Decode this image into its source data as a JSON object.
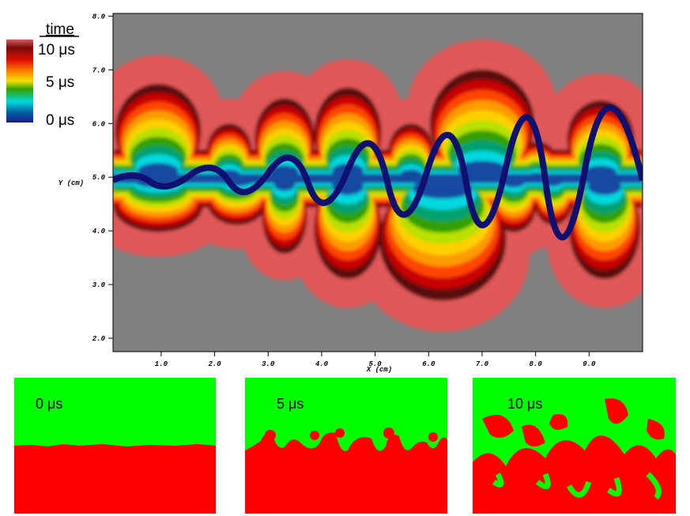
{
  "chart_data": {
    "type": "contour",
    "xlabel": "X (cm)",
    "ylabel": "Y (cm)",
    "xlim": [
      0.1,
      10
    ],
    "ylim": [
      1.75,
      8.05
    ],
    "xticks": [
      {
        "value": 1,
        "label": "1.0"
      },
      {
        "value": 2,
        "label": "2.0"
      },
      {
        "value": 3,
        "label": "3.0"
      },
      {
        "value": 4,
        "label": "4.0"
      },
      {
        "value": 5,
        "label": "5.0"
      },
      {
        "value": 6,
        "label": "6.0"
      },
      {
        "value": 7,
        "label": "7.0"
      },
      {
        "value": 8,
        "label": "8.0"
      },
      {
        "value": 9,
        "label": "9.0"
      }
    ],
    "yticks": [
      {
        "value": 2,
        "label": "2.0"
      },
      {
        "value": 3,
        "label": "3.0"
      },
      {
        "value": 4,
        "label": "4.0"
      },
      {
        "value": 5,
        "label": "5.0"
      },
      {
        "value": 6,
        "label": "6.0"
      },
      {
        "value": 7,
        "label": "7.0"
      },
      {
        "value": 8,
        "label": "8.0"
      }
    ]
  },
  "colorbar": {
    "title": "time",
    "labels": [
      "10 μs",
      "5 μs",
      "0 μs"
    ]
  },
  "panels": [
    {
      "label": "0 μs"
    },
    {
      "label": "5 μs"
    },
    {
      "label": "10 μs"
    }
  ]
}
